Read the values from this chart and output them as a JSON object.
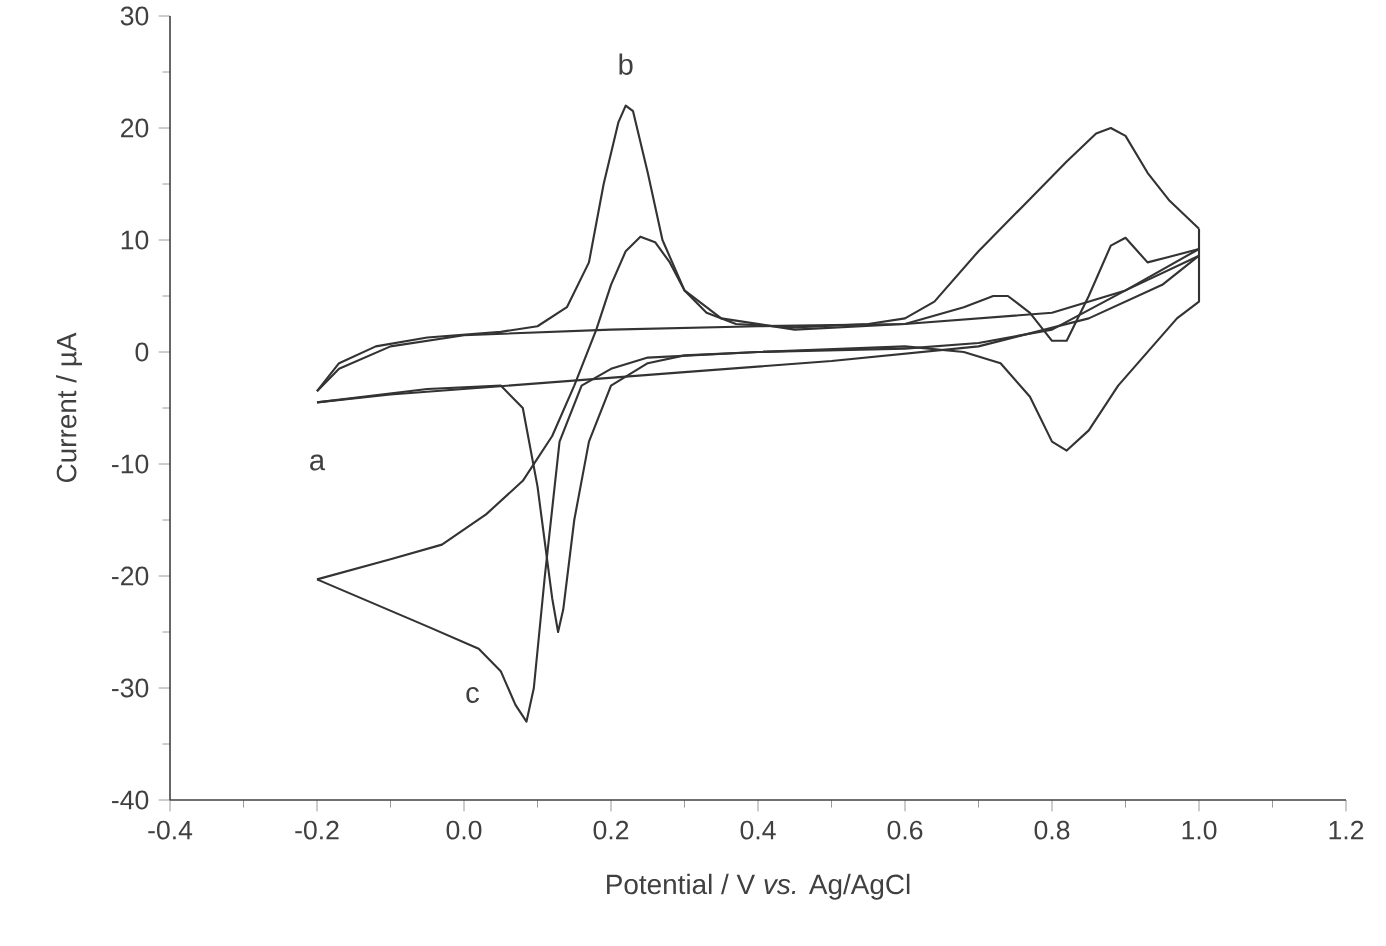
{
  "chart_data": {
    "type": "line",
    "xlabel": "Potential / V *vs.* Ag/AgCl",
    "ylabel": "Current / µA",
    "xlim": [
      -0.4,
      1.2
    ],
    "ylim": [
      -40,
      30
    ],
    "xticks": [
      -0.4,
      -0.2,
      {
        "value": 0,
        "label": "0.0"
      },
      0.2,
      0.4,
      0.6,
      0.8,
      {
        "value": 1,
        "label": "1.0"
      },
      1.2
    ],
    "yticks": [
      -40,
      -30,
      -20,
      -10,
      0,
      10,
      20,
      30
    ],
    "grid": false,
    "marker": "none",
    "line_style": "solid",
    "series": [
      {
        "color": "#333333",
        "x": [
          -0.2,
          -0.1,
          0.1,
          0.3,
          0.5,
          0.7,
          0.85,
          0.95,
          1.0
        ],
        "values": [
          -4.5,
          -3.8,
          -2.8,
          -1.8,
          -0.8,
          0.5,
          3,
          6,
          8.6
        ]
      },
      {
        "color": "#333333",
        "x": [
          1.0,
          0.9,
          0.8,
          0.6,
          0.4,
          0.2,
          0.0,
          -0.1,
          -0.17,
          -0.2
        ],
        "values": [
          8.6,
          5.5,
          3.5,
          2.5,
          2.3,
          2,
          1.5,
          0.5,
          -1.5,
          -3.5
        ]
      },
      {
        "color": "#333333",
        "x": [
          -0.2,
          -0.17,
          -0.12,
          -0.05,
          0.05,
          0.1,
          0.14,
          0.17,
          0.19,
          0.21,
          0.22,
          0.23,
          0.25,
          0.27,
          0.3,
          0.35,
          0.45,
          0.6,
          0.68,
          0.72,
          0.74,
          0.77,
          0.8,
          0.82,
          0.85,
          0.88,
          0.9,
          0.93,
          0.96,
          1.0
        ],
        "values": [
          -3.5,
          -1,
          0.5,
          1.3,
          1.8,
          2.3,
          4,
          8,
          15,
          20.5,
          22,
          21.5,
          16,
          10,
          5.5,
          3,
          2,
          2.5,
          4,
          5,
          5,
          3.5,
          1,
          1,
          5,
          9.5,
          10.2,
          8,
          8.5,
          9.2
        ]
      },
      {
        "color": "#333333",
        "x": [
          1.0,
          0.9,
          0.8,
          0.7,
          0.6,
          0.4,
          0.3,
          0.25,
          0.2,
          0.17,
          0.15,
          0.135,
          0.128,
          0.12,
          0.1,
          0.08,
          0.05,
          -0.05,
          -0.2
        ],
        "values": [
          9.2,
          5.5,
          2,
          0.8,
          0.3,
          0,
          -0.3,
          -1,
          -3,
          -8,
          -15,
          -23,
          -25,
          -22,
          -12,
          -5,
          -3,
          -3.3,
          -4.5
        ]
      },
      {
        "color": "#333333",
        "x": [
          -0.2,
          -0.1,
          -0.03,
          0.03,
          0.08,
          0.12,
          0.15,
          0.18,
          0.2,
          0.22,
          0.24,
          0.26,
          0.28,
          0.3,
          0.33,
          0.37,
          0.45,
          0.55,
          0.6,
          0.64,
          0.7,
          0.76,
          0.82,
          0.86,
          0.88,
          0.9,
          0.93,
          0.96,
          1.0
        ],
        "values": [
          -20.3,
          -18.5,
          -17.2,
          -14.5,
          -11.5,
          -7.5,
          -3,
          2,
          6,
          9,
          10.3,
          9.8,
          8,
          5.5,
          3.5,
          2.5,
          2.2,
          2.5,
          3,
          4.5,
          9,
          13,
          17,
          19.5,
          20,
          19.3,
          16,
          13.5,
          11
        ]
      },
      {
        "color": "#333333",
        "x": [
          1.0,
          1.0,
          0.97,
          0.93,
          0.89,
          0.85,
          0.82,
          0.8,
          0.77,
          0.73,
          0.68,
          0.6,
          0.4,
          0.25,
          0.2,
          0.16,
          0.13,
          0.11,
          0.095,
          0.085,
          0.07,
          0.05,
          0.02,
          -0.05,
          -0.2
        ],
        "values": [
          11,
          4.5,
          3,
          0,
          -3,
          -7,
          -8.8,
          -8,
          -4,
          -1,
          0,
          0.5,
          0,
          -0.5,
          -1.5,
          -3,
          -8,
          -20,
          -30,
          -33,
          -31.5,
          -28.5,
          -26.5,
          -24.5,
          -20.3
        ]
      }
    ],
    "annotations": [
      {
        "text": "a",
        "x": -0.2,
        "y": -4.5
      },
      {
        "text": "b",
        "x": 0.22,
        "y": 22
      },
      {
        "text": "c",
        "x": 0.085,
        "y": -33
      }
    ]
  }
}
